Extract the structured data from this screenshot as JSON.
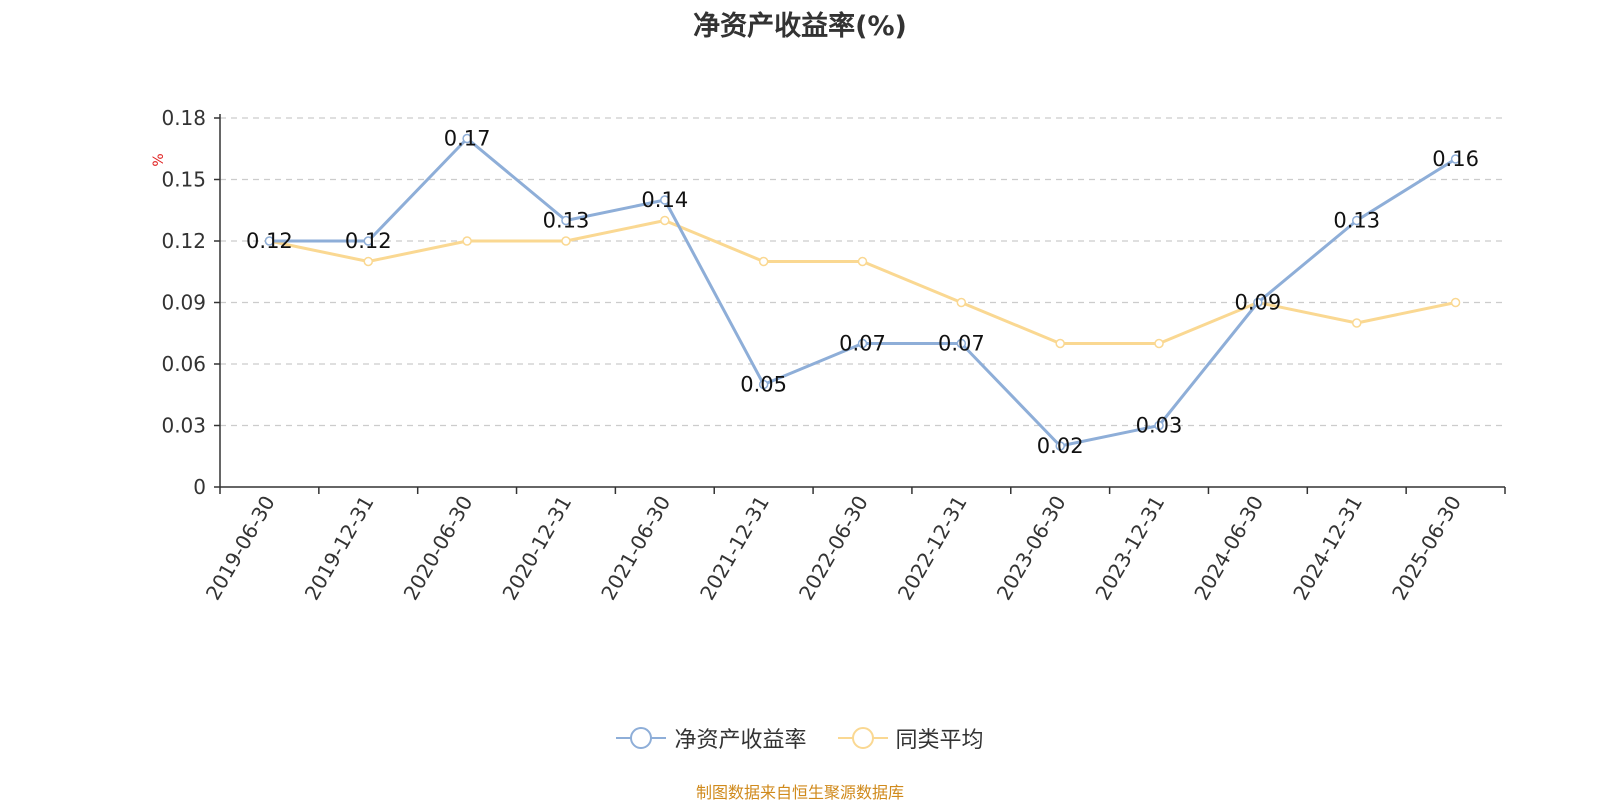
{
  "chart_data": {
    "type": "line",
    "title": "净资产收益率(%)",
    "unit_label": "%",
    "x": [
      "2019-06-30",
      "2019-12-31",
      "2020-06-30",
      "2020-12-31",
      "2021-06-30",
      "2021-12-31",
      "2022-06-30",
      "2022-12-31",
      "2023-06-30",
      "2023-12-31",
      "2024-06-30",
      "2024-12-31",
      "2025-06-30"
    ],
    "y_ticks": [
      0,
      0.03,
      0.06,
      0.09,
      0.12,
      0.15,
      0.18
    ],
    "y_tick_labels": [
      "0",
      "0.03",
      "0.06",
      "0.09",
      "0.12",
      "0.15",
      "0.18"
    ],
    "ylim": [
      0,
      0.18
    ],
    "grid": true,
    "legend_position": "bottom",
    "series": [
      {
        "name": "净资产收益率",
        "color": "#8eaed8",
        "values": [
          0.12,
          0.12,
          0.17,
          0.13,
          0.14,
          0.05,
          0.07,
          0.07,
          0.02,
          0.03,
          0.09,
          0.13,
          0.16
        ],
        "labels": [
          "0.12",
          "0.12",
          "0.17",
          "0.13",
          "0.14",
          "0.05",
          "0.07",
          "0.07",
          "0.02",
          "0.03",
          "0.09",
          "0.13",
          "0.16"
        ]
      },
      {
        "name": "同类平均",
        "color": "#fad892",
        "values": [
          0.12,
          0.11,
          0.12,
          0.12,
          0.13,
          0.11,
          0.11,
          0.09,
          0.07,
          0.07,
          0.09,
          0.08,
          0.09
        ]
      }
    ]
  },
  "source_note": "制图数据来自恒生聚源数据库"
}
